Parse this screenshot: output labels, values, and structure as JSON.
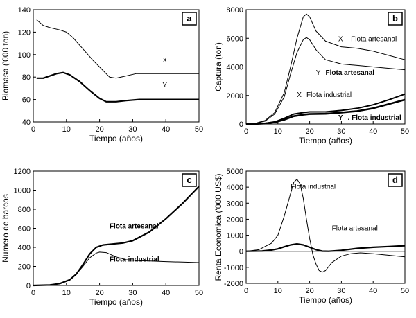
{
  "chart_data": [
    {
      "id": "a",
      "type": "line",
      "panel_label": "a",
      "xlabel": "Tiempo (años)",
      "ylabel": "Biomasa ('000 ton)",
      "xlim": [
        0,
        50
      ],
      "ylim": [
        40,
        140
      ],
      "xticks": [
        0,
        10,
        20,
        30,
        40,
        50
      ],
      "yticks": [
        40,
        60,
        80,
        100,
        120,
        140
      ],
      "series": [
        {
          "name": "X",
          "width": 1,
          "points": [
            [
              1,
              131
            ],
            [
              3,
              126
            ],
            [
              5,
              124
            ],
            [
              8,
              122
            ],
            [
              10,
              120
            ],
            [
              12,
              115
            ],
            [
              15,
              105
            ],
            [
              18,
              95
            ],
            [
              21,
              86
            ],
            [
              23,
              80
            ],
            [
              25,
              79
            ],
            [
              28,
              81
            ],
            [
              31,
              83
            ],
            [
              35,
              83
            ],
            [
              40,
              83
            ],
            [
              45,
              83
            ],
            [
              50,
              83
            ]
          ]
        },
        {
          "name": "Y",
          "width": 2.2,
          "points": [
            [
              1,
              79
            ],
            [
              3,
              79
            ],
            [
              5,
              81
            ],
            [
              7,
              83
            ],
            [
              9,
              84
            ],
            [
              11,
              82
            ],
            [
              14,
              76
            ],
            [
              17,
              68
            ],
            [
              20,
              61
            ],
            [
              22,
              58
            ],
            [
              25,
              58
            ],
            [
              28,
              59
            ],
            [
              32,
              60
            ],
            [
              36,
              60
            ],
            [
              40,
              60
            ],
            [
              45,
              60
            ],
            [
              50,
              60
            ]
          ]
        }
      ],
      "annotations": [
        {
          "text": "X",
          "x": 39,
          "y": 93,
          "bold": false
        },
        {
          "text": "Y",
          "x": 39,
          "y": 71,
          "bold": false
        }
      ]
    },
    {
      "id": "b",
      "type": "line",
      "panel_label": "b",
      "xlabel": "Tiempo (años)",
      "ylabel": "Captura (ton)",
      "xlim": [
        0,
        50
      ],
      "ylim": [
        0,
        8000
      ],
      "xticks": [
        0,
        10,
        20,
        30,
        40,
        50
      ],
      "yticks": [
        0,
        2000,
        4000,
        6000,
        8000
      ],
      "series": [
        {
          "name": "X Flota artesanal",
          "width": 1,
          "points": [
            [
              0,
              0
            ],
            [
              3,
              60
            ],
            [
              6,
              250
            ],
            [
              9,
              800
            ],
            [
              12,
              2200
            ],
            [
              14,
              4000
            ],
            [
              16,
              6000
            ],
            [
              18,
              7500
            ],
            [
              19,
              7700
            ],
            [
              20,
              7500
            ],
            [
              22,
              6500
            ],
            [
              25,
              5800
            ],
            [
              30,
              5400
            ],
            [
              35,
              5300
            ],
            [
              40,
              5100
            ],
            [
              45,
              4800
            ],
            [
              50,
              4500
            ]
          ]
        },
        {
          "name": "Y Flota artesanal",
          "width": 1,
          "points": [
            [
              0,
              0
            ],
            [
              3,
              50
            ],
            [
              6,
              200
            ],
            [
              9,
              700
            ],
            [
              12,
              1900
            ],
            [
              14,
              3500
            ],
            [
              16,
              5000
            ],
            [
              18,
              5900
            ],
            [
              19,
              6050
            ],
            [
              20,
              5900
            ],
            [
              22,
              5200
            ],
            [
              25,
              4500
            ],
            [
              30,
              4200
            ],
            [
              35,
              4100
            ],
            [
              40,
              4000
            ],
            [
              45,
              3900
            ],
            [
              50,
              3800
            ]
          ]
        },
        {
          "name": "X Flota industrial",
          "width": 2,
          "points": [
            [
              0,
              0
            ],
            [
              3,
              10
            ],
            [
              6,
              50
            ],
            [
              9,
              150
            ],
            [
              12,
              400
            ],
            [
              15,
              700
            ],
            [
              18,
              800
            ],
            [
              20,
              850
            ],
            [
              25,
              850
            ],
            [
              30,
              950
            ],
            [
              35,
              1100
            ],
            [
              40,
              1350
            ],
            [
              45,
              1700
            ],
            [
              50,
              2100
            ]
          ]
        },
        {
          "name": "Y Flota industrial",
          "width": 2.6,
          "points": [
            [
              0,
              0
            ],
            [
              3,
              8
            ],
            [
              6,
              40
            ],
            [
              9,
              120
            ],
            [
              12,
              300
            ],
            [
              15,
              550
            ],
            [
              18,
              650
            ],
            [
              20,
              700
            ],
            [
              25,
              720
            ],
            [
              30,
              800
            ],
            [
              35,
              900
            ],
            [
              40,
              1100
            ],
            [
              45,
              1400
            ],
            [
              50,
              1700
            ]
          ]
        }
      ],
      "annotations": [
        {
          "text": "X",
          "x": 29,
          "y": 5800,
          "bold": false
        },
        {
          "text": "Flota artesanal",
          "x": 33,
          "y": 5800,
          "bold": false
        },
        {
          "text": "Y",
          "x": 22,
          "y": 3450,
          "bold": false
        },
        {
          "text": "Flota artesanal",
          "x": 25,
          "y": 3450,
          "bold": true
        },
        {
          "text": "X",
          "x": 16,
          "y": 1900,
          "bold": false
        },
        {
          "text": "Flota industrial",
          "x": 19,
          "y": 1900,
          "bold": false
        },
        {
          "text": "Y",
          "x": 29,
          "y": 300,
          "bold": true
        },
        {
          "text": ". Flota industrial",
          "x": 32,
          "y": 300,
          "bold": true
        }
      ]
    },
    {
      "id": "c",
      "type": "line",
      "panel_label": "c",
      "xlabel": "Tiempo (años)",
      "ylabel": "Numero de barcos",
      "xlim": [
        0,
        50
      ],
      "ylim": [
        0,
        1200
      ],
      "xticks": [
        0,
        10,
        20,
        30,
        40,
        50
      ],
      "yticks": [
        0,
        200,
        400,
        600,
        800,
        1000,
        1200
      ],
      "series": [
        {
          "name": "Flota artesanal",
          "width": 2.2,
          "points": [
            [
              0,
              0
            ],
            [
              5,
              5
            ],
            [
              8,
              20
            ],
            [
              11,
              60
            ],
            [
              13,
              120
            ],
            [
              15,
              220
            ],
            [
              17,
              330
            ],
            [
              19,
              400
            ],
            [
              21,
              425
            ],
            [
              24,
              435
            ],
            [
              27,
              445
            ],
            [
              30,
              470
            ],
            [
              35,
              560
            ],
            [
              40,
              700
            ],
            [
              45,
              860
            ],
            [
              50,
              1040
            ]
          ]
        },
        {
          "name": "Flota industrial",
          "width": 1,
          "points": [
            [
              0,
              0
            ],
            [
              5,
              5
            ],
            [
              8,
              20
            ],
            [
              11,
              60
            ],
            [
              13,
              120
            ],
            [
              15,
              200
            ],
            [
              17,
              290
            ],
            [
              19,
              340
            ],
            [
              20,
              350
            ],
            [
              22,
              345
            ],
            [
              25,
              300
            ],
            [
              28,
              270
            ],
            [
              32,
              260
            ],
            [
              36,
              255
            ],
            [
              40,
              250
            ],
            [
              45,
              245
            ],
            [
              50,
              240
            ]
          ]
        }
      ],
      "annotations": [
        {
          "text": "Flota artesanal",
          "x": 23,
          "y": 600,
          "bold": true
        },
        {
          "text": "Flota industrial",
          "x": 23,
          "y": 250,
          "bold": true
        }
      ]
    },
    {
      "id": "d",
      "type": "line",
      "panel_label": "d",
      "xlabel": "Tiempo (años)",
      "ylabel": "Renta Economica ('000 US$)",
      "xlim": [
        0,
        50
      ],
      "ylim": [
        -2000,
        5000
      ],
      "xticks": [
        0,
        10,
        20,
        30,
        40,
        50
      ],
      "yticks": [
        -2000,
        -1000,
        0,
        1000,
        2000,
        3000,
        4000,
        5000
      ],
      "series": [
        {
          "name": "Flota industrial",
          "width": 1,
          "points": [
            [
              0,
              0
            ],
            [
              4,
              100
            ],
            [
              8,
              500
            ],
            [
              10,
              1000
            ],
            [
              12,
              2200
            ],
            [
              14,
              3600
            ],
            [
              15,
              4300
            ],
            [
              16,
              4500
            ],
            [
              17,
              4200
            ],
            [
              18,
              3300
            ],
            [
              19,
              2000
            ],
            [
              20,
              800
            ],
            [
              21,
              -200
            ],
            [
              22,
              -800
            ],
            [
              23,
              -1200
            ],
            [
              24,
              -1300
            ],
            [
              25,
              -1200
            ],
            [
              27,
              -700
            ],
            [
              30,
              -300
            ],
            [
              33,
              -150
            ],
            [
              36,
              -100
            ],
            [
              40,
              -150
            ],
            [
              45,
              -250
            ],
            [
              50,
              -350
            ]
          ]
        },
        {
          "name": "Flota artesanal",
          "width": 2.2,
          "points": [
            [
              0,
              0
            ],
            [
              5,
              20
            ],
            [
              8,
              80
            ],
            [
              10,
              150
            ],
            [
              12,
              280
            ],
            [
              14,
              400
            ],
            [
              16,
              460
            ],
            [
              18,
              400
            ],
            [
              20,
              250
            ],
            [
              22,
              100
            ],
            [
              24,
              10
            ],
            [
              26,
              0
            ],
            [
              30,
              60
            ],
            [
              35,
              180
            ],
            [
              40,
              250
            ],
            [
              45,
              300
            ],
            [
              50,
              350
            ]
          ]
        }
      ],
      "annotations": [
        {
          "text": "Flota industrial",
          "x": 14,
          "y": 3900,
          "bold": false
        },
        {
          "text": "Flota artesanal",
          "x": 27,
          "y": 1300,
          "bold": false
        }
      ]
    }
  ]
}
